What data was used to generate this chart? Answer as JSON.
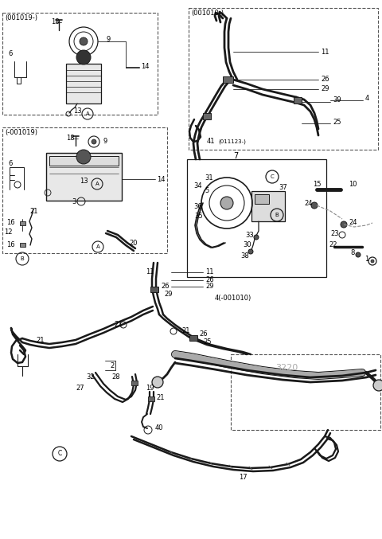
{
  "bg_color": "#ffffff",
  "lc": "#1a1a1a",
  "gray": "#888888",
  "lgray": "#cccccc",
  "box1_label": "(001019-)",
  "box2_label": "(-001019)",
  "box3_label": "(001010-)",
  "box4_num": "7",
  "rack_num": "3220",
  "fsz": 6.0
}
